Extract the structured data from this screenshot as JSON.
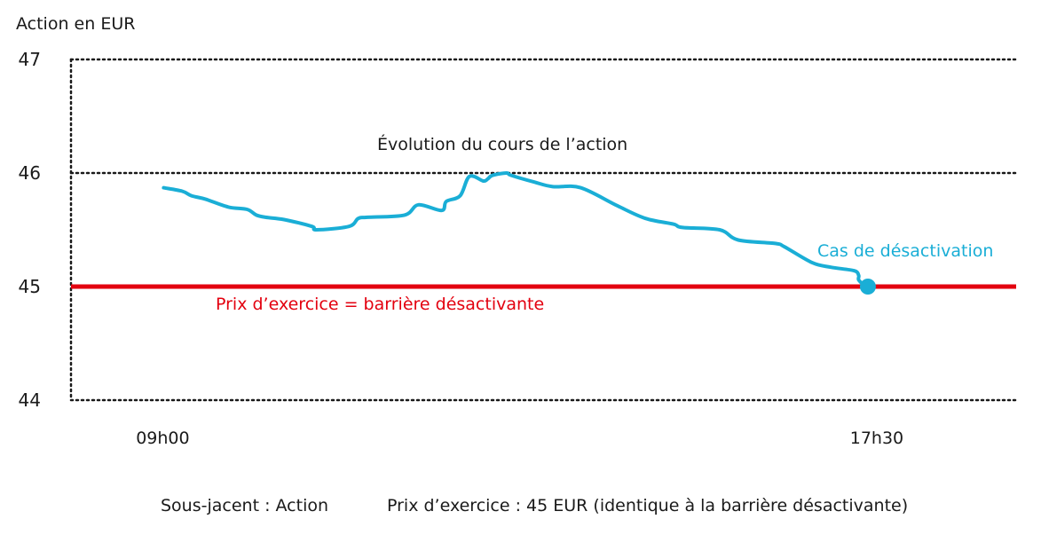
{
  "chart_data": {
    "type": "line",
    "ylabel": "Action en EUR",
    "ylim": [
      44,
      47
    ],
    "y_ticks": [
      "44",
      "45",
      "46",
      "47"
    ],
    "x_labels": [
      "09h00",
      "17h30"
    ],
    "grid": true,
    "series": [
      {
        "name": "Évolution du cours de l’action",
        "color": "#1aaed6",
        "x": [
          0,
          0.2,
          0.3,
          0.45,
          0.7,
          0.9,
          1.0,
          1.1,
          1.3,
          1.6,
          1.65,
          2.0,
          2.1,
          2.2,
          2.6,
          2.75,
          3.0,
          3.05,
          3.2,
          3.3,
          3.45,
          3.5,
          3.55,
          3.7,
          3.75,
          4.0,
          4.2,
          4.5,
          4.9,
          5.2,
          5.5,
          5.6,
          6.0,
          6.2,
          6.6,
          6.7,
          7.0,
          7.2,
          7.45,
          7.5,
          7.5,
          7.55,
          7.6
        ],
        "values": [
          45.87,
          45.84,
          45.8,
          45.77,
          45.7,
          45.68,
          45.63,
          45.61,
          45.59,
          45.53,
          45.5,
          45.53,
          45.6,
          45.61,
          45.63,
          45.72,
          45.67,
          45.75,
          45.8,
          45.97,
          45.93,
          45.95,
          45.98,
          46.0,
          45.98,
          45.92,
          45.88,
          45.87,
          45.71,
          45.6,
          45.55,
          45.52,
          45.5,
          45.41,
          45.38,
          45.35,
          45.21,
          45.17,
          45.14,
          45.1,
          45.06,
          45.02,
          45.0
        ]
      }
    ],
    "reference_lines": [
      {
        "y": 45,
        "label": "Prix d’exercice = barrière désactivante",
        "color": "#e3000f"
      }
    ],
    "annotations": [
      {
        "text": "Cas de désactivation",
        "x": 7.6,
        "y": 45.0,
        "color": "#1aaed6"
      }
    ],
    "x_axis_label_positions": [
      0,
      7.6
    ],
    "xlim": [
      -1.0,
      9.2
    ]
  },
  "footer": {
    "underlying": "Sous-jacent : Action",
    "strike": "Prix d’exercice : 45 EUR (identique à la barrière désactivante)"
  }
}
